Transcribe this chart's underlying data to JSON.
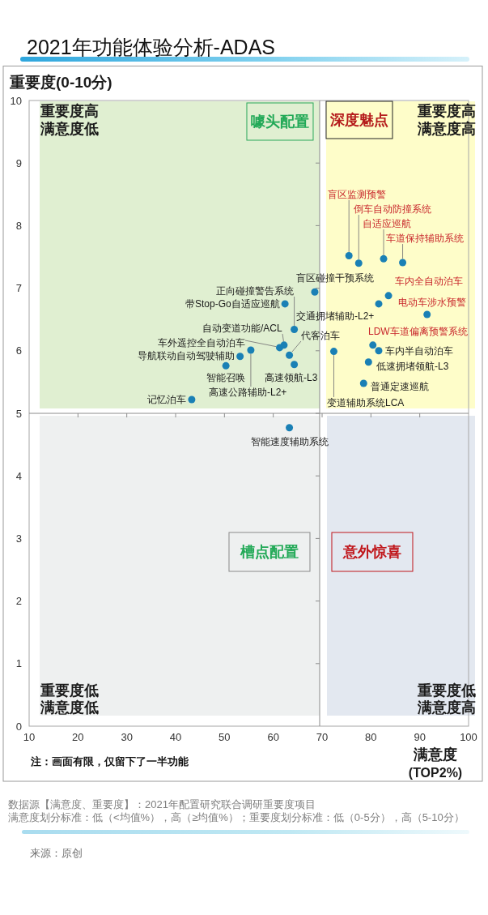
{
  "chart_data": {
    "type": "scatter",
    "title": "2021年功能体验分析-ADAS",
    "xlabel": "满意度\n(TOP2%)",
    "ylabel": "重要度(0-10分)",
    "x": [
      75.5,
      77.5,
      82.6,
      86.5,
      83.6,
      81.6,
      91.5,
      80.4,
      81.6,
      72.4,
      79.5,
      78.5,
      68.5,
      62.4,
      64.3,
      61.3,
      62.2,
      63.3,
      64.3,
      55.4,
      53.2,
      50.3,
      43.3,
      63.3
    ],
    "values": [
      7.52,
      7.4,
      7.47,
      7.41,
      6.88,
      6.75,
      6.58,
      6.09,
      6.0,
      5.99,
      5.82,
      5.48,
      6.94,
      6.75,
      6.34,
      6.05,
      6.09,
      5.93,
      5.78,
      6.01,
      5.91,
      5.76,
      5.22,
      4.77
    ],
    "color": "#1a80b5",
    "marker": "circle",
    "xlim": [
      10,
      100
    ],
    "xticks": [
      10,
      20,
      30,
      40,
      50,
      60,
      70,
      80,
      90,
      100
    ],
    "ylim": [
      0,
      10
    ],
    "yticks": [
      0,
      1,
      2,
      3,
      4,
      5,
      6,
      7,
      8,
      9,
      10
    ],
    "ref_lines": [
      {
        "axis": "x",
        "value": 69.5,
        "color": "#8c8c8c"
      },
      {
        "axis": "y",
        "value": 5,
        "color": "#8c8c8c"
      }
    ],
    "annotations": [
      "重要度高满意度低",
      "重要度高满意度高",
      "重要度低满意度低",
      "重要度低满意度高",
      "噱头配置",
      "深度魅点",
      "槽点配置",
      "意外惊喜",
      "注：画面有限，仅留下了一半功能",
      "数据源【满意度、重要度】：2021年配置研究联合调研重要度项目",
      "满意度划分标准：低（<均值%），高（≥均值%）；重要度划分标准：低（0-5分），高（5-10分）",
      "来源：原创",
      {
        "text": "盲区监测预警",
        "x": 75.5,
        "y": 7.52
      },
      {
        "text": "倒车自动防撞系统",
        "x": 77.5,
        "y": 7.4
      },
      {
        "text": "自适应巡航",
        "x": 82.6,
        "y": 7.47
      },
      {
        "text": "车道保持辅助系统",
        "x": 86.5,
        "y": 7.41
      },
      {
        "text": "车内全自动泊车",
        "x": 83.6,
        "y": 6.88
      },
      {
        "text": "交通拥堵辅助-L2+",
        "x": 81.6,
        "y": 6.75
      },
      {
        "text": "电动车涉水预警",
        "x": 91.5,
        "y": 6.58
      },
      {
        "text": "LDW车道偏离预警系统",
        "x": 80.4,
        "y": 6.09
      },
      {
        "text": "车内半自动泊车",
        "x": 81.6,
        "y": 6.0
      },
      {
        "text": "变道辅助系统LCA",
        "x": 72.4,
        "y": 5.99
      },
      {
        "text": "低速拥堵领航-L3",
        "x": 79.5,
        "y": 5.82
      },
      {
        "text": "普通定速巡航",
        "x": 78.5,
        "y": 5.48
      },
      {
        "text": "盲区碰撞干预系统",
        "x": 68.5,
        "y": 6.94
      },
      {
        "text": "带Stop-Go自适应巡航",
        "x": 62.4,
        "y": 6.75
      },
      {
        "text": "正向碰撞警告系统",
        "x": 64.3,
        "y": 6.34
      },
      {
        "text": "车外遥控全自动泊车",
        "x": 61.3,
        "y": 6.05
      },
      {
        "text": "自动变道功能/ACL",
        "x": 62.2,
        "y": 6.09
      },
      {
        "text": "代客泊车",
        "x": 63.3,
        "y": 5.93
      },
      {
        "text": "高速领航-L3",
        "x": 64.3,
        "y": 5.78
      },
      {
        "text": "高速公路辅助-L2+",
        "x": 55.4,
        "y": 6.01
      },
      {
        "text": "导航联动自动驾驶辅助",
        "x": 53.2,
        "y": 5.91
      },
      {
        "text": "智能召唤",
        "x": 50.3,
        "y": 5.76
      },
      {
        "text": "记忆泊车",
        "x": 43.3,
        "y": 5.22
      },
      {
        "text": "智能速度辅助系统",
        "x": 63.3,
        "y": 4.77
      }
    ]
  }
}
